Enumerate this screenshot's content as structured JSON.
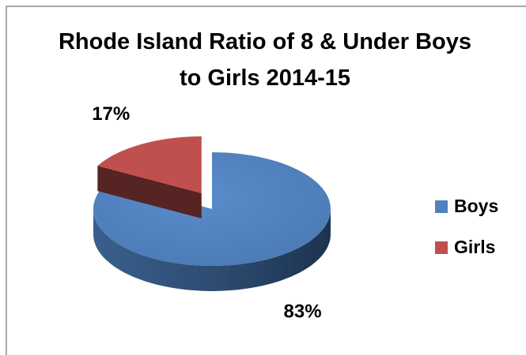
{
  "chart_data": {
    "type": "pie",
    "title": "Rhode Island Ratio of 8 & Under Boys to Girls 2014-15",
    "categories": [
      "Boys",
      "Girls"
    ],
    "values": [
      83,
      17
    ],
    "value_labels": [
      "83%",
      "17%"
    ],
    "colors": [
      "#4f81bd",
      "#c0504d"
    ],
    "legend": "right"
  }
}
